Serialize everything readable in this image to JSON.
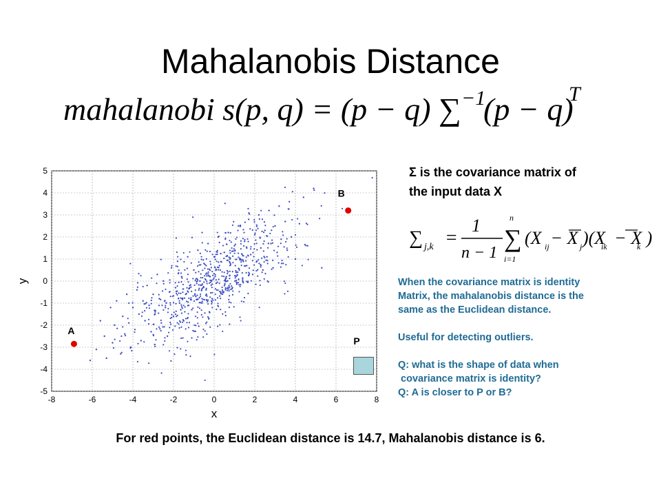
{
  "title": "Mahalanobis Distance",
  "formula": {
    "lhs": "mahalanobi s(p, q) = (p − q) ∑",
    "exp": "−1",
    "rhs": "(p − q)",
    "exp_t": "T"
  },
  "sigma_desc": {
    "line1": "Σ is the covariance matrix of",
    "line2": "the input data X"
  },
  "cov_formula": {
    "lhs": "∑",
    "sub": "j,k",
    "eq": "=",
    "num": "1",
    "den": "n − 1",
    "sum_top": "n",
    "sum_bottom": "i=1",
    "body": "(X  − X )(X  − X )",
    "sub_ij": "ij",
    "sub_j": "j",
    "sub_ik": "ik",
    "sub_k": "k"
  },
  "notes": [
    "When the covariance matrix is identity",
    "Matrix, the mahalanobis distance is the",
    "same as the Euclidean distance.",
    "",
    "Useful for detecting outliers.",
    "",
    "Q: what is the shape of data when",
    " covariance matrix is identity?",
    "Q: A is closer to P or B?"
  ],
  "bottom_text": "For red points, the Euclidean distance is 14.7, Mahalanobis distance is 6.",
  "chart_data": {
    "type": "scatter",
    "xlabel": "x",
    "ylabel": "y",
    "xlim": [
      -8,
      8
    ],
    "ylim": [
      -5,
      5
    ],
    "xticks": [
      -8,
      -6,
      -4,
      -2,
      0,
      2,
      4,
      6,
      8
    ],
    "yticks": [
      -5,
      -4,
      -3,
      -2,
      -1,
      0,
      1,
      2,
      3,
      4,
      5
    ],
    "grid": true,
    "points_color": "#3b4cc0",
    "highlight_color": "#e00000",
    "highlight_points": [
      {
        "label": "A",
        "x": -6.9,
        "y": -2.85
      },
      {
        "label": "B",
        "x": 6.6,
        "y": 3.2
      }
    ],
    "box_label": "P",
    "series": [
      {
        "x": [
          -6.1,
          -5.8,
          -5.6,
          -5.4,
          -5.3,
          -5.1,
          -5.0,
          -4.9,
          -4.8,
          -4.6,
          -4.5,
          -4.4,
          -4.3,
          -4.2,
          -4.1,
          -4.0,
          -3.9,
          -3.8,
          -3.7,
          -3.6,
          -3.5,
          -3.4,
          -3.3,
          -3.2,
          -3.1,
          -3.0,
          -2.9,
          -2.8,
          -2.7,
          -2.6,
          -2.5,
          -2.4,
          -2.3,
          -2.2,
          -2.1,
          -2.0,
          -1.9,
          -1.8,
          -1.7,
          -1.6,
          -1.5,
          -1.4,
          -1.3,
          -1.2,
          -1.1,
          -1.0,
          -0.9,
          -0.8,
          -0.7,
          -0.6,
          -0.5,
          -0.4,
          -0.3,
          -0.2,
          -0.1,
          0.0,
          0.1,
          0.2,
          0.3,
          0.4,
          0.5,
          0.6,
          0.7,
          0.8,
          0.9,
          1.0,
          1.1,
          1.2,
          1.3,
          1.4,
          1.5,
          1.6,
          1.7,
          1.8,
          1.9,
          2.0,
          2.1,
          2.2,
          2.3,
          2.4,
          2.5,
          2.6,
          2.7,
          2.8,
          2.9,
          3.0,
          3.1,
          3.2,
          3.3,
          3.4,
          3.5,
          3.6,
          3.7,
          3.8,
          4.0,
          4.2,
          4.4,
          4.6,
          4.9,
          5.3
        ],
        "y": [
          -3.6,
          -3.1,
          -1.8,
          -2.5,
          -3.5,
          -1.2,
          -2.8,
          -2.0,
          -0.9,
          -3.3,
          -1.6,
          -2.4,
          -0.6,
          -1.9,
          -3.0,
          -1.2,
          -2.2,
          -0.4,
          -1.5,
          -2.7,
          -0.9,
          -1.8,
          -0.2,
          -1.1,
          -2.3,
          -0.6,
          -1.4,
          0.3,
          -0.8,
          -1.9,
          0.0,
          -1.2,
          -2.5,
          -0.5,
          0.6,
          -1.6,
          -0.3,
          0.9,
          -1.0,
          0.2,
          -1.8,
          -0.6,
          1.1,
          -0.2,
          -1.3,
          0.5,
          -0.7,
          1.4,
          0.0,
          -1.0,
          0.8,
          -0.4,
          1.7,
          0.2,
          -0.8,
          1.1,
          -0.1,
          2.0,
          0.5,
          -0.5,
          1.3,
          0.2,
          2.2,
          0.8,
          -0.3,
          1.6,
          0.4,
          2.5,
          1.0,
          0.0,
          1.8,
          0.7,
          2.8,
          1.2,
          0.3,
          2.1,
          0.9,
          3.0,
          1.5,
          0.5,
          2.3,
          1.1,
          3.2,
          1.7,
          0.6,
          2.5,
          1.3,
          3.4,
          1.9,
          0.8,
          2.7,
          1.4,
          3.6,
          2.0,
          1.0,
          2.6,
          3.8,
          1.6,
          4.2,
          0.6
        ]
      }
    ]
  }
}
